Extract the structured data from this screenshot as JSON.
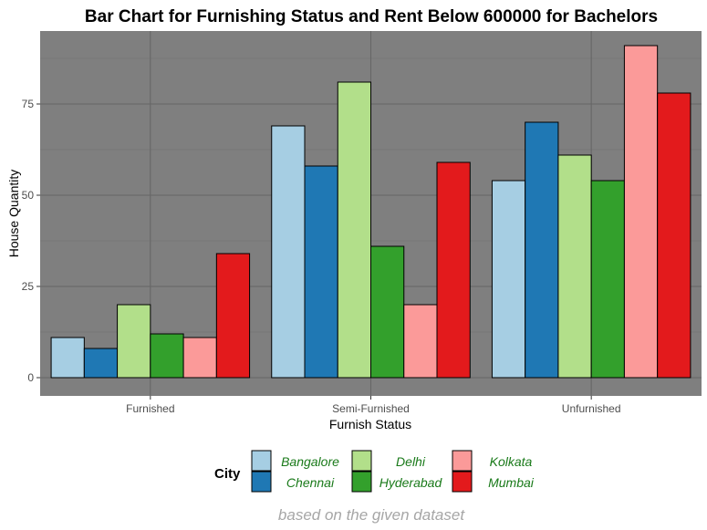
{
  "chart_data": {
    "type": "bar",
    "title": "Bar Chart for Furnishing Status and Rent Below 600000 for Bachelors",
    "xlabel": "Furnish Status",
    "ylabel": "House Quantity",
    "caption": "based on the given dataset",
    "categories": [
      "Furnished",
      "Semi-Furnished",
      "Unfurnished"
    ],
    "ylim": [
      -5,
      95
    ],
    "yticks": [
      0,
      25,
      50,
      75
    ],
    "ytick_labels": [
      "0",
      "25",
      "50",
      "75"
    ],
    "grid": true,
    "background_color": "#7f7f7f",
    "legend": {
      "title": "City",
      "position": "bottom",
      "columns": [
        [
          "Bangalore",
          "Chennai"
        ],
        [
          "Delhi",
          "Hyderabad"
        ],
        [
          "Kolkata",
          "Mumbai"
        ]
      ]
    },
    "series": [
      {
        "name": "Bangalore",
        "color": "#a6cee3",
        "values": [
          11,
          69,
          54
        ]
      },
      {
        "name": "Chennai",
        "color": "#1f78b4",
        "values": [
          8,
          58,
          70
        ]
      },
      {
        "name": "Delhi",
        "color": "#b2df8a",
        "values": [
          20,
          81,
          61
        ]
      },
      {
        "name": "Hyderabad",
        "color": "#33a02c",
        "values": [
          12,
          36,
          54
        ]
      },
      {
        "name": "Kolkata",
        "color": "#fb9a99",
        "values": [
          11,
          20,
          91
        ]
      },
      {
        "name": "Mumbai",
        "color": "#e31a1c",
        "values": [
          34,
          59,
          78
        ]
      }
    ]
  }
}
